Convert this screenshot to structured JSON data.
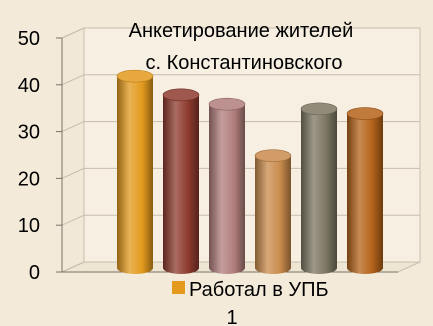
{
  "chart_data": {
    "type": "bar",
    "style": "3d-cylinder",
    "title_lines": [
      "Анкетирование жителей",
      "с. Константиновского"
    ],
    "categories": [
      "1"
    ],
    "ylim": [
      0,
      50
    ],
    "yticks": [
      0,
      10,
      20,
      30,
      40,
      50
    ],
    "grid": true,
    "legend_position": "bottom",
    "legend_label": "Работал в УПБ",
    "series": [
      {
        "name": "Работал в УПБ",
        "value": 41,
        "color": "#e39a1d"
      },
      {
        "value": 37,
        "color": "#8e3b2e"
      },
      {
        "value": 35,
        "color": "#b07e7c"
      },
      {
        "value": 24,
        "color": "#c98b4c"
      },
      {
        "value": 34,
        "color": "#7d7663"
      },
      {
        "value": 33,
        "color": "#b5631a"
      }
    ]
  }
}
